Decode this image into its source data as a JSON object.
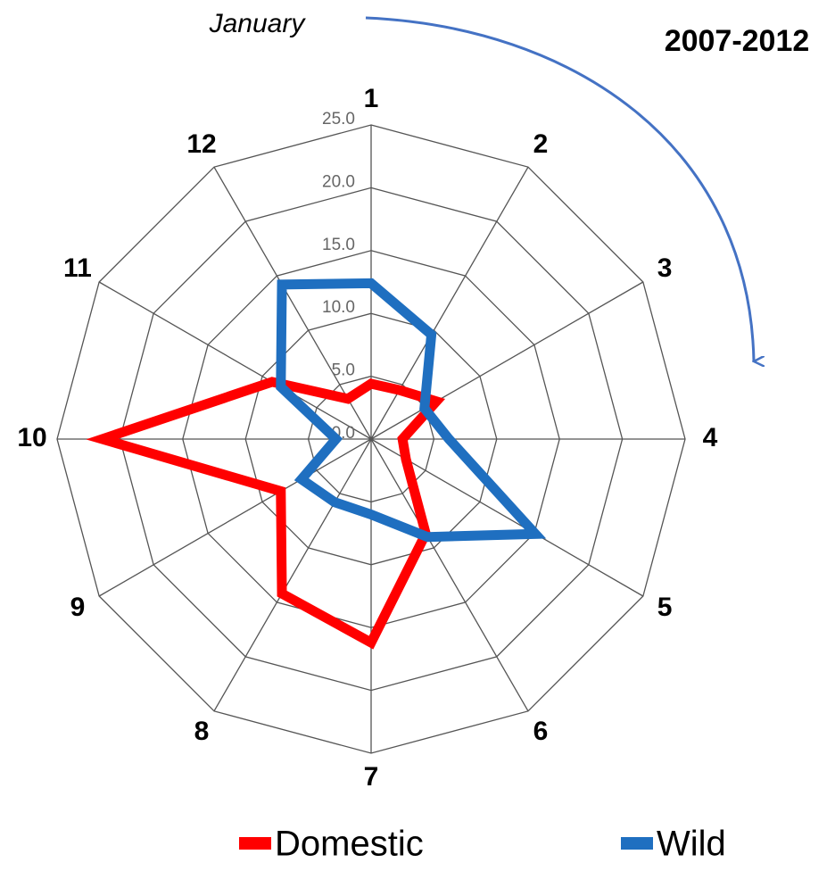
{
  "chart_data": {
    "type": "radar",
    "title": "2007-2012",
    "annotation": "January",
    "categories": [
      "1",
      "2",
      "3",
      "4",
      "5",
      "6",
      "7",
      "8",
      "9",
      "10",
      "11",
      "12"
    ],
    "series": [
      {
        "name": "Domestic",
        "color": "#ff0000",
        "values": [
          4.4,
          4.5,
          6.0,
          2.5,
          3.2,
          8.7,
          16.2,
          14.2,
          8.3,
          21.4,
          9.1,
          3.7
        ]
      },
      {
        "name": "Wild",
        "color": "#1f6fc0",
        "values": [
          12.4,
          9.6,
          4.9,
          6.2,
          15.1,
          9.0,
          6.0,
          5.8,
          6.4,
          2.8,
          8.3,
          14.2
        ]
      }
    ],
    "ylim": [
      0,
      25
    ],
    "yticks": [
      {
        "value": 0,
        "label": "0.0"
      },
      {
        "value": 5,
        "label": "5.0"
      },
      {
        "value": 10,
        "label": "10.0"
      },
      {
        "value": 15,
        "label": "15.0"
      },
      {
        "value": 20,
        "label": "20.0"
      },
      {
        "value": 25,
        "label": "25.0"
      }
    ],
    "grid": true
  }
}
